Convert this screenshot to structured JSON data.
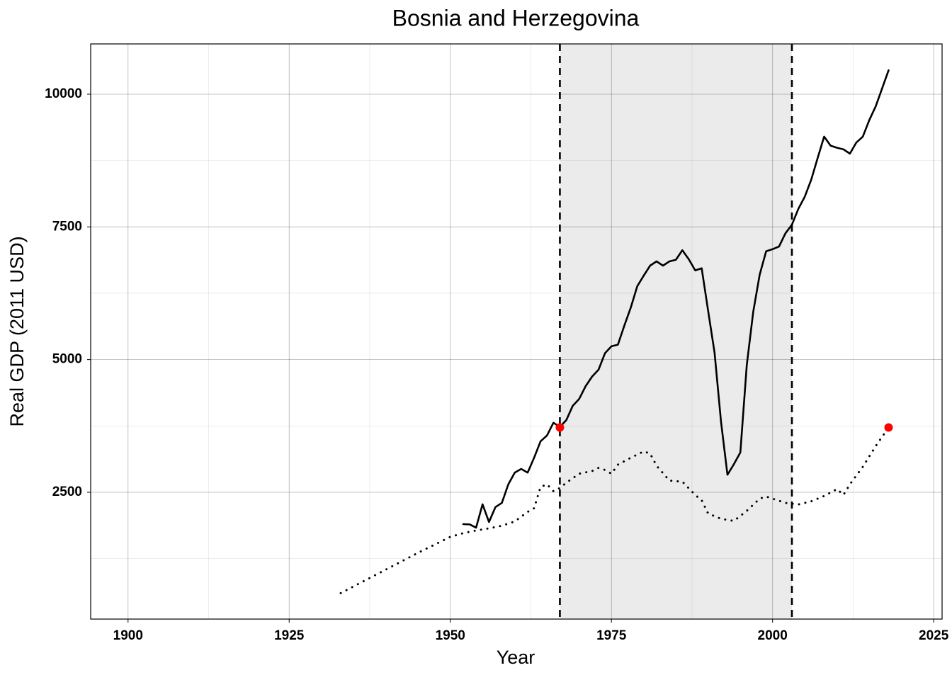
{
  "chart_data": {
    "type": "line",
    "title": "Bosnia and Herzegovina",
    "x_label": "Year",
    "y_label": "Real GDP (2011 USD)",
    "xlim": [
      1894.2,
      2026.3
    ],
    "ylim": [
      111,
      10947
    ],
    "xticks": [
      1900,
      1925,
      1950,
      1975,
      2000,
      2025
    ],
    "yticks": [
      2500,
      5000,
      7500,
      10000
    ],
    "grid": true,
    "shade": [
      1967,
      2003
    ],
    "shade_color": "#ebebeb",
    "vlines": [
      1967,
      2003
    ],
    "series": [
      {
        "color": "#000000",
        "dash": "solid",
        "x": [
          1952,
          1953,
          1954,
          1955,
          1956,
          1957,
          1958,
          1959,
          1960,
          1961,
          1962,
          1963,
          1964,
          1965,
          1966,
          1967,
          1968,
          1969,
          1970,
          1971,
          1972,
          1973,
          1974,
          1975,
          1976,
          1977,
          1978,
          1979,
          1980,
          1981,
          1982,
          1983,
          1984,
          1985,
          1986,
          1987,
          1988,
          1989,
          1990,
          1991,
          1992,
          1993,
          1994,
          1995,
          1996,
          1997,
          1998,
          1999,
          2000,
          2001,
          2002,
          2003,
          2004,
          2005,
          2006,
          2007,
          2008,
          2009,
          2010,
          2011,
          2012,
          2013,
          2014,
          2015,
          2016,
          2017,
          2018
        ],
        "values": [
          1900,
          1895,
          1833,
          2273,
          1940,
          2220,
          2300,
          2650,
          2870,
          2940,
          2870,
          3150,
          3460,
          3570,
          3810,
          3730,
          3860,
          4130,
          4260,
          4500,
          4680,
          4810,
          5120,
          5250,
          5280,
          5640,
          5980,
          6380,
          6580,
          6770,
          6850,
          6770,
          6850,
          6880,
          7060,
          6890,
          6680,
          6720,
          5920,
          5130,
          3830,
          2830,
          3030,
          3250,
          4900,
          5900,
          6600,
          7040,
          7080,
          7130,
          7380,
          7540,
          7840,
          8070,
          8390,
          8800,
          9200,
          9030,
          8990,
          8960,
          8880,
          9090,
          9200,
          9510,
          9770,
          10110,
          10450
        ]
      },
      {
        "color": "#000000",
        "dash": "dotted",
        "x": [
          1933,
          1936,
          1939,
          1942,
          1945,
          1948,
          1950,
          1952,
          1954,
          1956,
          1958,
          1960,
          1962,
          1963,
          1964,
          1965,
          1966,
          1967,
          1968,
          1970,
          1972,
          1973,
          1974,
          1975,
          1976,
          1978,
          1980,
          1981,
          1982,
          1984,
          1986,
          1988,
          1989,
          1990,
          1992,
          1994,
          1996,
          1998,
          1999,
          2000,
          2002,
          2004,
          2006,
          2008,
          2010,
          2011,
          2012,
          2014,
          2016,
          2018
        ],
        "values": [
          600,
          790,
          980,
          1170,
          1360,
          1540,
          1660,
          1730,
          1780,
          1820,
          1870,
          1950,
          2130,
          2200,
          2600,
          2650,
          2520,
          2580,
          2680,
          2850,
          2900,
          2960,
          2920,
          2850,
          3020,
          3150,
          3270,
          3230,
          3000,
          2720,
          2700,
          2450,
          2350,
          2100,
          2000,
          1960,
          2150,
          2380,
          2420,
          2380,
          2300,
          2270,
          2330,
          2430,
          2560,
          2450,
          2650,
          2980,
          3370,
          3720
        ]
      }
    ],
    "points": {
      "color": "#ff0000",
      "x": [
        1967,
        2018
      ],
      "values": [
        3720,
        3720
      ]
    }
  }
}
